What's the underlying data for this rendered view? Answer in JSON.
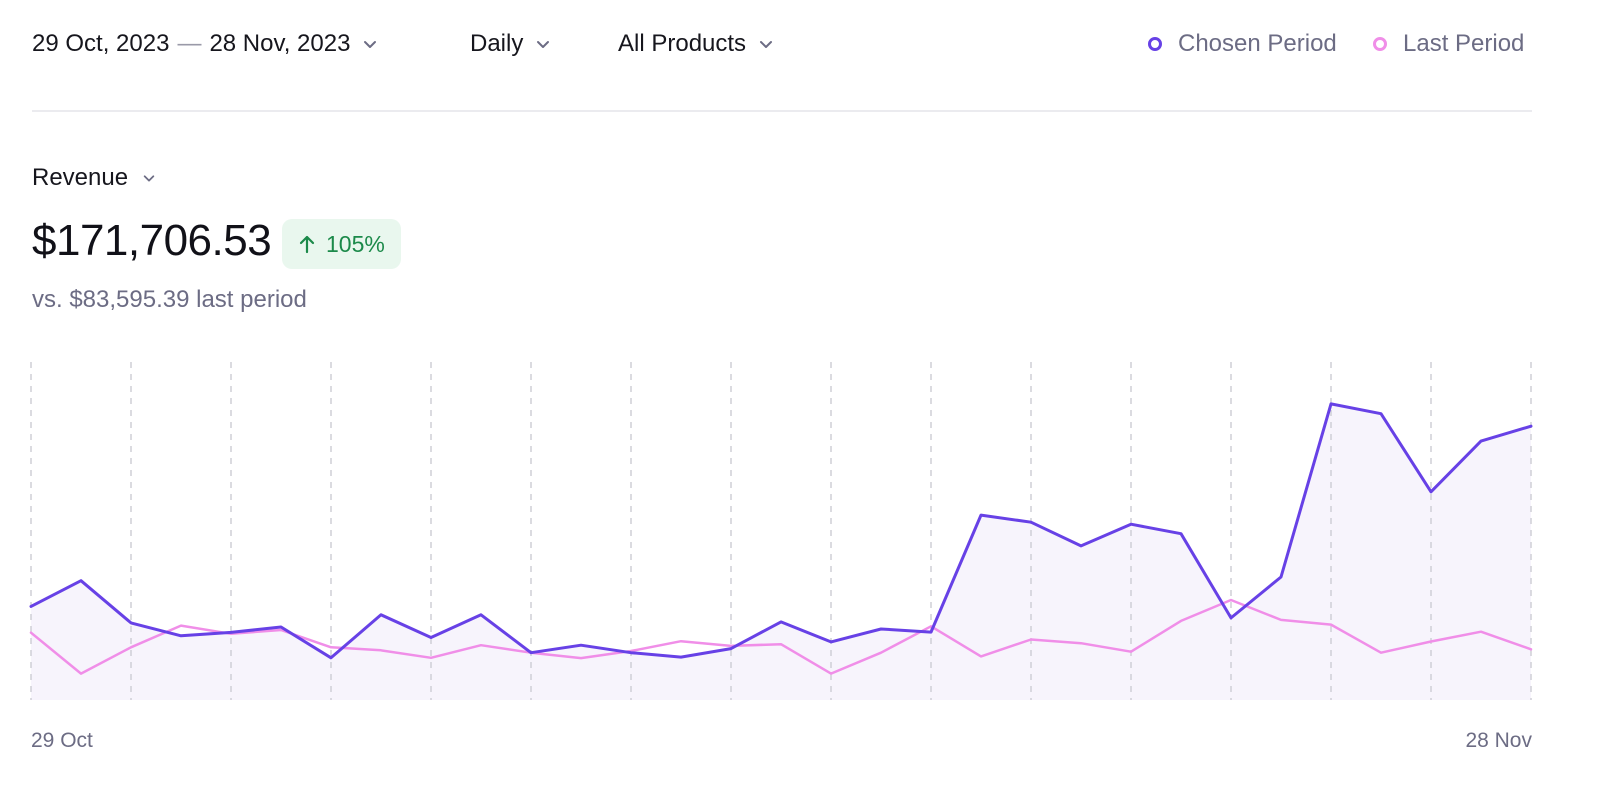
{
  "filters": {
    "date_start": "29 Oct, 2023",
    "date_separator": "—",
    "date_end": "28 Nov, 2023",
    "granularity": "Daily",
    "products": "All Products"
  },
  "legend": {
    "chosen": "Chosen Period",
    "last": "Last Period"
  },
  "metric": {
    "name": "Revenue",
    "value": "$171,706.53",
    "change": "105%",
    "comparison": "vs. $83,595.39 last period"
  },
  "colors": {
    "chosen": "#6741e6",
    "last": "#f08ee8",
    "area": "#f7f4fc",
    "gridline": "#cfcfd6",
    "badge_bg": "#e9f7ee",
    "badge_text": "#1c8a4a"
  },
  "chart_data": {
    "type": "line",
    "x_start_label": "29 Oct",
    "x_end_label": "28 Nov",
    "ylim": [
      0,
      10000
    ],
    "grid": "vertical-dashed",
    "series": [
      {
        "name": "Chosen Period",
        "values": [
          2770,
          3530,
          2280,
          1900,
          2000,
          2160,
          1250,
          2520,
          1850,
          2520,
          1400,
          1620,
          1400,
          1270,
          1520,
          2310,
          1720,
          2100,
          2010,
          5470,
          5260,
          4560,
          5200,
          4920,
          2430,
          3640,
          8760,
          8470,
          6160,
          7660,
          8100
        ]
      },
      {
        "name": "Last Period",
        "values": [
          1990,
          780,
          1560,
          2200,
          1960,
          2070,
          1560,
          1470,
          1250,
          1620,
          1400,
          1240,
          1450,
          1740,
          1600,
          1650,
          780,
          1400,
          2180,
          1290,
          1790,
          1680,
          1430,
          2340,
          2960,
          2370,
          2230,
          1400,
          1730,
          2020,
          1500
        ]
      }
    ]
  }
}
